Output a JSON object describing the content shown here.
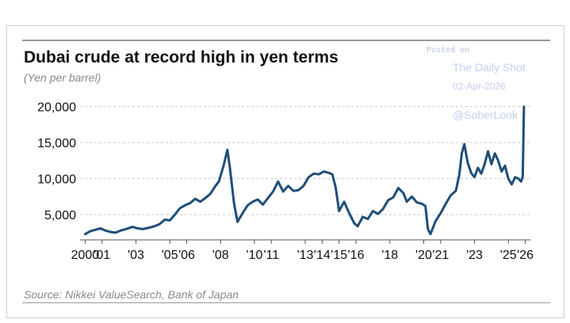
{
  "chart_data": {
    "type": "line",
    "title": "Dubai crude at record high in yen terms",
    "subtitle": "(Yen per barrel)",
    "source": "Source: Nikkei ValueSearch, Bank of Japan",
    "xlabel": "",
    "ylabel": "Yen per barrel",
    "ylim": [
      1500,
      21500
    ],
    "xlim": [
      1999.7,
      2026.3
    ],
    "y_ticks": [
      {
        "value": 5000,
        "label": "5,000"
      },
      {
        "value": 10000,
        "label": "10,000"
      },
      {
        "value": 15000,
        "label": "15,000"
      },
      {
        "value": 20000,
        "label": "20,000"
      }
    ],
    "x_ticks": [
      {
        "value": 2000,
        "label": "2000"
      },
      {
        "value": 2001,
        "label": "'01"
      },
      {
        "value": 2003,
        "label": "'03"
      },
      {
        "value": 2005,
        "label": "'05"
      },
      {
        "value": 2006,
        "label": "'06"
      },
      {
        "value": 2008,
        "label": "'08"
      },
      {
        "value": 2010,
        "label": "'10"
      },
      {
        "value": 2011,
        "label": "'11"
      },
      {
        "value": 2013,
        "label": "'13"
      },
      {
        "value": 2014,
        "label": "'14"
      },
      {
        "value": 2015,
        "label": "'15"
      },
      {
        "value": 2016,
        "label": "'16"
      },
      {
        "value": 2018,
        "label": "'18"
      },
      {
        "value": 2020,
        "label": "'20"
      },
      {
        "value": 2021,
        "label": "'21"
      },
      {
        "value": 2023,
        "label": "'23"
      },
      {
        "value": 2025,
        "label": "'25"
      },
      {
        "value": 2026,
        "label": "'26"
      }
    ],
    "grid": true,
    "series": [
      {
        "name": "Dubai crude (yen per barrel)",
        "color": "#1f4e79",
        "x": [
          2000.0,
          2000.3,
          2000.6,
          2000.9,
          2001.2,
          2001.5,
          2001.8,
          2002.1,
          2002.4,
          2002.8,
          2003.1,
          2003.4,
          2003.8,
          2004.1,
          2004.4,
          2004.7,
          2005.0,
          2005.3,
          2005.6,
          2005.9,
          2006.2,
          2006.5,
          2006.8,
          2007.1,
          2007.4,
          2007.7,
          2007.9,
          2008.2,
          2008.4,
          2008.55,
          2008.8,
          2009.0,
          2009.3,
          2009.6,
          2009.9,
          2010.2,
          2010.5,
          2010.8,
          2011.1,
          2011.4,
          2011.7,
          2012.0,
          2012.3,
          2012.6,
          2012.9,
          2013.2,
          2013.5,
          2013.8,
          2014.1,
          2014.4,
          2014.6,
          2014.8,
          2015.0,
          2015.3,
          2015.6,
          2015.9,
          2016.1,
          2016.4,
          2016.7,
          2017.0,
          2017.3,
          2017.6,
          2017.9,
          2018.2,
          2018.5,
          2018.8,
          2019.0,
          2019.3,
          2019.6,
          2019.9,
          2020.1,
          2020.25,
          2020.4,
          2020.7,
          2021.0,
          2021.3,
          2021.6,
          2021.9,
          2022.1,
          2022.25,
          2022.4,
          2022.6,
          2022.8,
          2023.0,
          2023.2,
          2023.4,
          2023.6,
          2023.8,
          2024.0,
          2024.2,
          2024.4,
          2024.6,
          2024.8,
          2025.0,
          2025.2,
          2025.4,
          2025.6,
          2025.75,
          2025.85,
          2025.92
        ],
        "values": [
          2300,
          2700,
          2900,
          3100,
          2800,
          2600,
          2500,
          2800,
          3000,
          3300,
          3100,
          3000,
          3200,
          3400,
          3700,
          4300,
          4200,
          5000,
          5900,
          6300,
          6600,
          7200,
          6800,
          7300,
          7900,
          9000,
          9600,
          12000,
          14000,
          11500,
          6500,
          4000,
          5200,
          6300,
          6800,
          7100,
          6400,
          7300,
          8200,
          9600,
          8200,
          9000,
          8300,
          8400,
          9000,
          10200,
          10700,
          10600,
          11000,
          10800,
          10600,
          8800,
          5500,
          6800,
          5200,
          3800,
          3400,
          4700,
          4400,
          5500,
          5100,
          5800,
          7000,
          7400,
          8700,
          8000,
          6800,
          7500,
          6700,
          6500,
          6200,
          3000,
          2300,
          4100,
          5200,
          6500,
          7700,
          8300,
          10500,
          13500,
          14800,
          12200,
          10800,
          10200,
          11500,
          10700,
          12000,
          13800,
          12000,
          13500,
          12500,
          11000,
          11800,
          10000,
          9200,
          10200,
          10000,
          9600,
          10300,
          20000
        ]
      }
    ]
  },
  "watermark": {
    "posted": "Posted on",
    "name": "The Daily Shot",
    "date": "02-Apr-2026",
    "handle": "@SoberLook"
  }
}
